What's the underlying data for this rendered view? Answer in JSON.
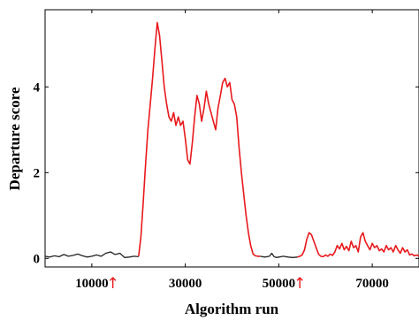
{
  "chart_data": {
    "type": "line",
    "title": "",
    "xlabel": "Algorithm run",
    "ylabel": "Departure score",
    "xlim": [
      0,
      80000
    ],
    "ylim": [
      -0.2,
      5.8
    ],
    "xticks": [
      10000,
      30000,
      50000,
      70000
    ],
    "yticks": [
      0,
      2,
      4
    ],
    "grid": false,
    "legend": "none",
    "colors": {
      "normal": "#222222",
      "anomaly": "#e8191c",
      "marker": "#e8191c"
    },
    "change_markers": {
      "x": [
        14500,
        54500
      ],
      "symbol": "↑"
    },
    "series": [
      {
        "color_key": "normal",
        "x": [
          0,
          1000,
          2000,
          3000,
          4000,
          5000,
          6000,
          7000,
          8000,
          9000,
          10000,
          11000,
          12000,
          13000,
          14000,
          15000,
          16000,
          17000,
          18000,
          19000,
          20000
        ],
        "y": [
          0.05,
          0.03,
          0.06,
          0.04,
          0.09,
          0.05,
          0.07,
          0.1,
          0.06,
          0.03,
          0.05,
          0.08,
          0.05,
          0.12,
          0.15,
          0.09,
          0.12,
          0.02,
          0.03,
          0.05,
          0.04
        ]
      },
      {
        "color_key": "anomaly",
        "x": [
          20000,
          20500,
          21000,
          21500,
          22000,
          22500,
          23000,
          23500,
          24000,
          24500,
          25000,
          25500,
          26000,
          26500,
          27000,
          27500,
          28000,
          28500,
          29000,
          29500,
          30000,
          30500,
          31000,
          31500,
          32000,
          32500,
          33000,
          33500,
          34000,
          34500,
          35000,
          35500,
          36000,
          36500,
          37000,
          37500,
          38000,
          38500,
          39000,
          39500,
          40000,
          40500,
          41000,
          41500,
          42000,
          42500,
          43000,
          43500,
          44000,
          44500,
          45000,
          45500,
          46000
        ],
        "y": [
          0.05,
          0.5,
          1.3,
          2.2,
          3.0,
          3.6,
          4.2,
          4.9,
          5.5,
          5.2,
          4.6,
          4.0,
          3.6,
          3.3,
          3.2,
          3.4,
          3.1,
          3.3,
          3.1,
          3.2,
          2.8,
          2.3,
          2.2,
          2.7,
          3.3,
          3.8,
          3.6,
          3.2,
          3.5,
          3.9,
          3.6,
          3.4,
          3.2,
          3.0,
          3.5,
          3.8,
          4.1,
          4.2,
          4.0,
          4.1,
          3.7,
          3.6,
          3.3,
          2.6,
          2.0,
          1.5,
          1.0,
          0.6,
          0.3,
          0.1,
          0.06,
          0.05,
          0.05
        ]
      },
      {
        "color_key": "normal",
        "x": [
          46000,
          47000,
          48000,
          48500,
          49000,
          49500,
          50000,
          51000,
          52000,
          53000,
          54000
        ],
        "y": [
          0.05,
          0.03,
          0.05,
          0.12,
          0.04,
          0.02,
          0.03,
          0.05,
          0.03,
          0.02,
          0.03
        ]
      },
      {
        "color_key": "anomaly",
        "x": [
          54000,
          54500,
          55000,
          55500,
          56000,
          56500,
          57000,
          57500,
          58000,
          58500,
          59000,
          59500,
          60000,
          60500,
          61000,
          61500,
          62000,
          62500,
          63000,
          63500,
          64000,
          64500,
          65000,
          65500,
          66000,
          66500,
          67000,
          67500,
          68000,
          68500,
          69000,
          69500,
          70000,
          70500,
          71000,
          71500,
          72000,
          72500,
          73000,
          73500,
          74000,
          74500,
          75000,
          75500,
          76000,
          76500,
          77000,
          77500,
          78000,
          78500,
          79000,
          79500,
          80000
        ],
        "y": [
          0.03,
          0.05,
          0.08,
          0.2,
          0.45,
          0.6,
          0.55,
          0.4,
          0.25,
          0.1,
          0.05,
          0.04,
          0.08,
          0.05,
          0.1,
          0.07,
          0.15,
          0.3,
          0.22,
          0.35,
          0.2,
          0.28,
          0.18,
          0.4,
          0.25,
          0.3,
          0.15,
          0.5,
          0.6,
          0.4,
          0.3,
          0.2,
          0.35,
          0.25,
          0.3,
          0.18,
          0.22,
          0.15,
          0.3,
          0.2,
          0.25,
          0.15,
          0.3,
          0.2,
          0.12,
          0.25,
          0.15,
          0.2,
          0.08,
          0.1,
          0.06,
          0.08,
          0.05
        ]
      }
    ]
  }
}
